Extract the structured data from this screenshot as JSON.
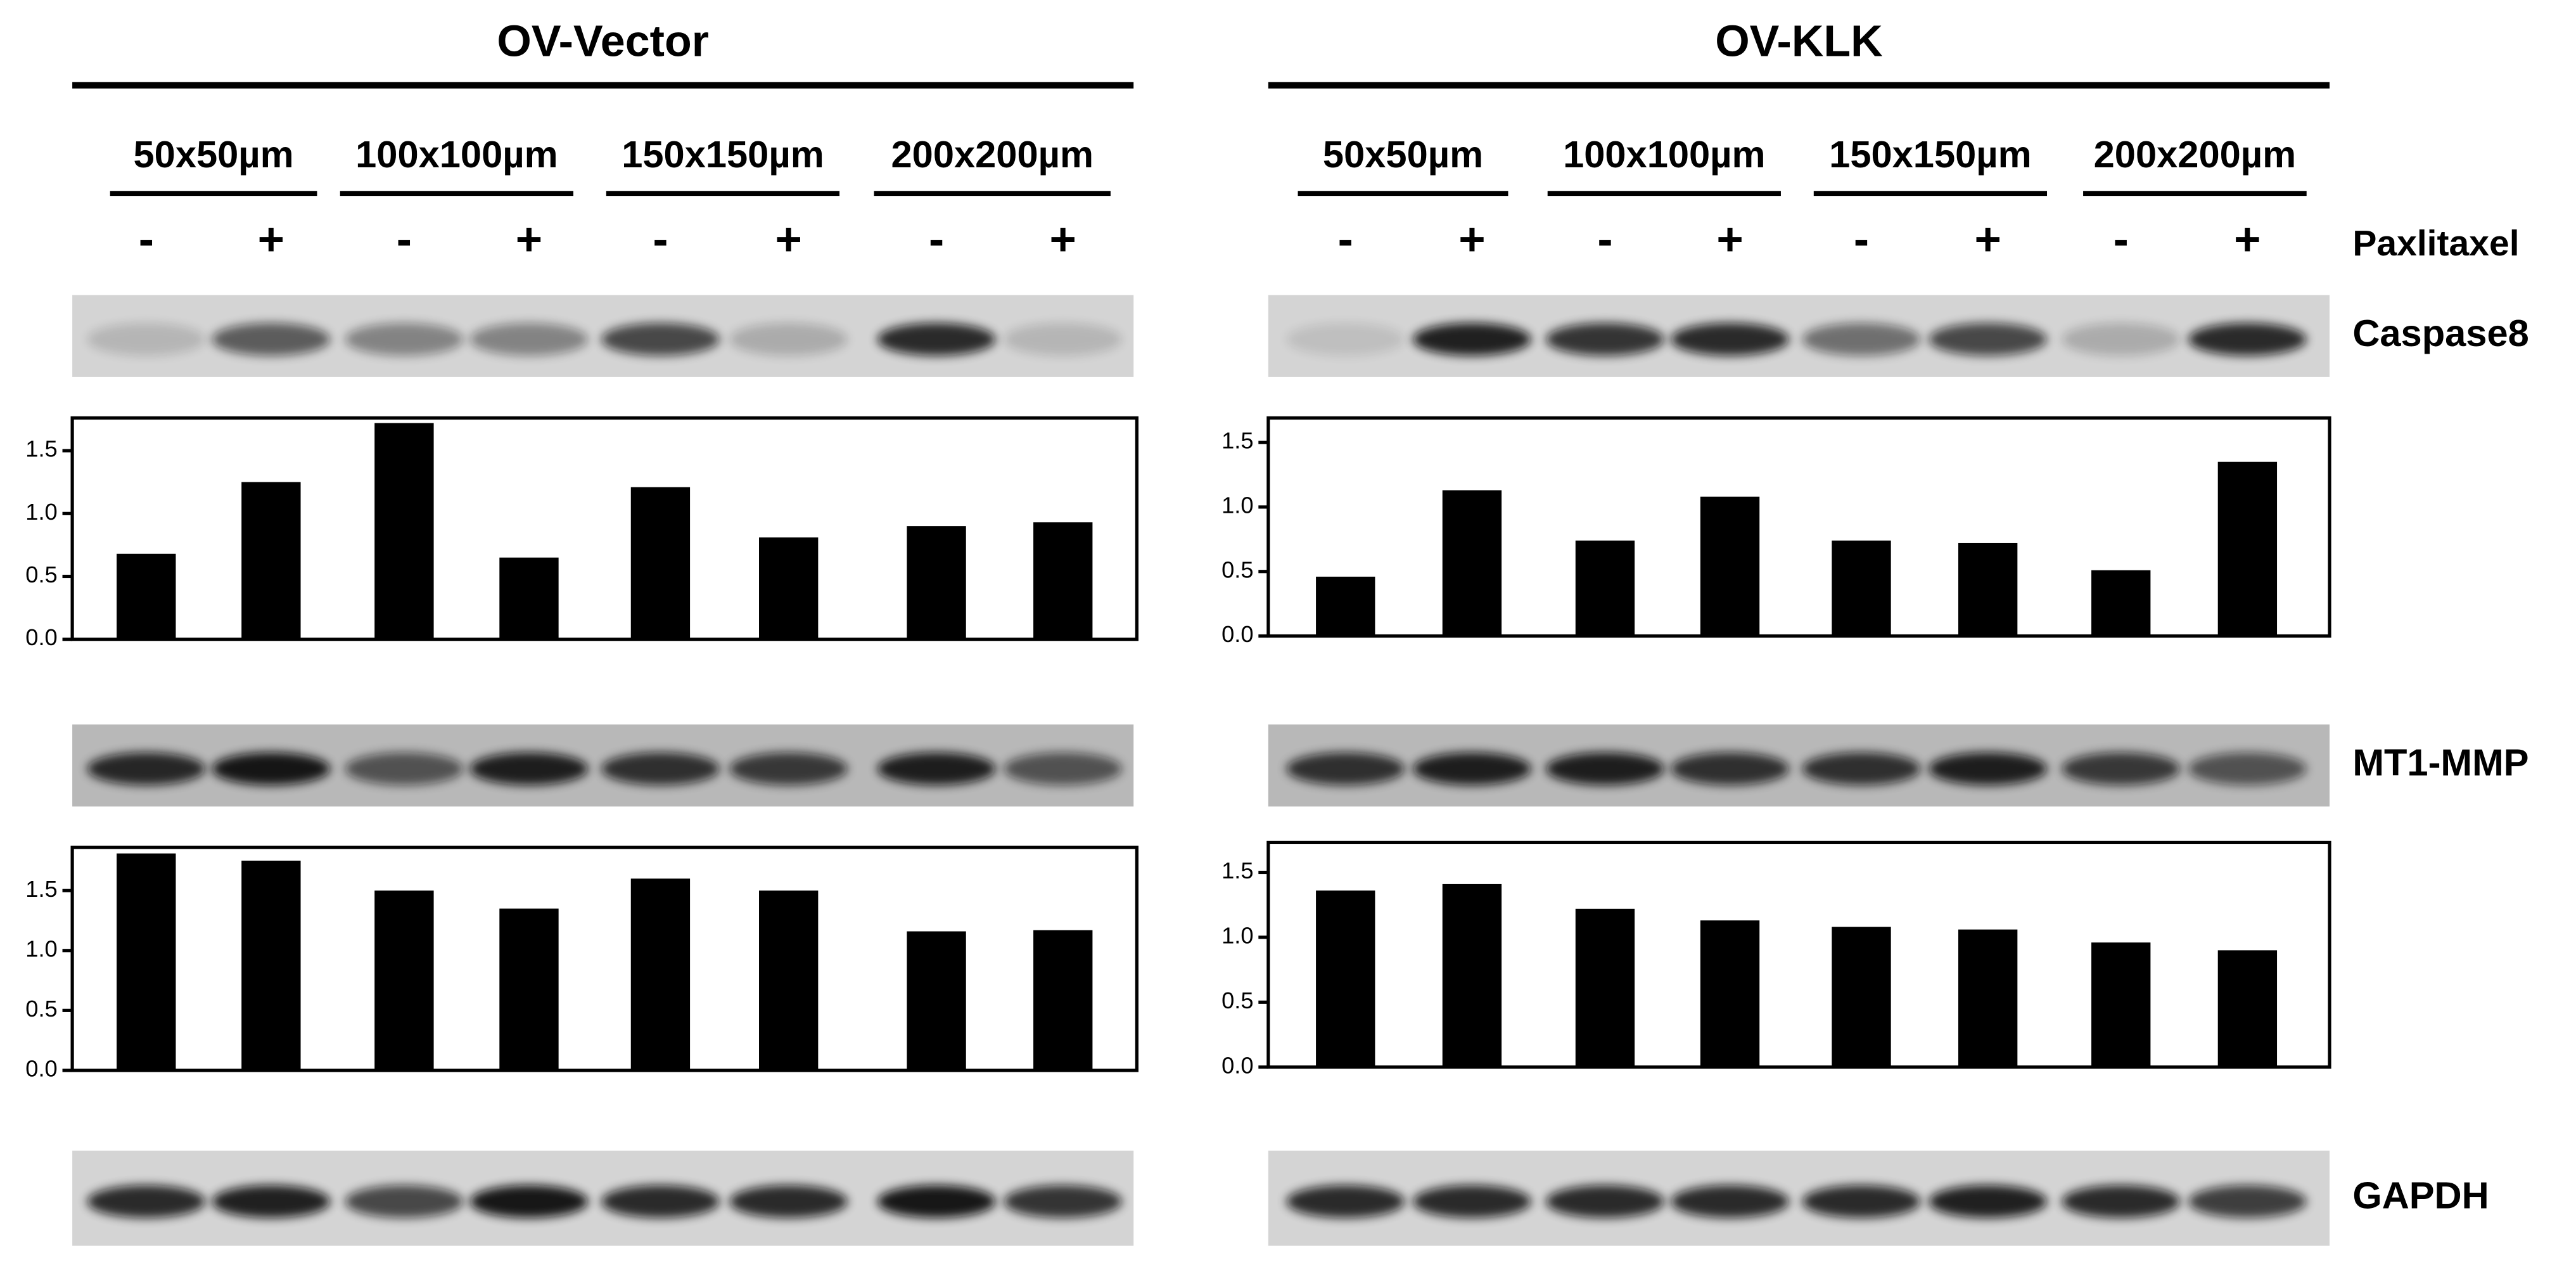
{
  "panels": [
    {
      "title": "OV-Vector",
      "sizes": [
        "50x50µm",
        "100x100µm",
        "150x150µm",
        "200x200µm"
      ],
      "treatments": [
        "-",
        "+",
        "-",
        "+",
        "-",
        "+",
        "-",
        "+"
      ]
    },
    {
      "title": "OV-KLK",
      "sizes": [
        "50x50µm",
        "100x100µm",
        "150x150µm",
        "200x200µm"
      ],
      "treatments": [
        "-",
        "+",
        "-",
        "+",
        "-",
        "+",
        "-",
        "+"
      ]
    }
  ],
  "treatment_label": "Paxlitaxel",
  "blot_labels": [
    "Caspase8",
    "MT1-MMP",
    "GAPDH"
  ],
  "chart_data": [
    {
      "type": "bar",
      "color": "#000000",
      "values": [
        0.68,
        1.25,
        1.72,
        0.65,
        1.21,
        0.81,
        0.9,
        0.93
      ],
      "ylim": [
        0,
        1.76
      ],
      "yticks": [
        {
          "value": 0,
          "label": "0.0"
        },
        0.5,
        {
          "value": 1,
          "label": "1.0"
        },
        1.5
      ]
    },
    {
      "type": "bar",
      "color": "#000000",
      "values": [
        0.46,
        1.13,
        0.74,
        1.08,
        0.74,
        0.72,
        0.51,
        1.35
      ],
      "ylim": [
        0,
        1.69
      ],
      "yticks": [
        {
          "value": 0,
          "label": "0.0"
        },
        0.5,
        {
          "value": 1,
          "label": "1.0"
        },
        1.5
      ]
    },
    {
      "type": "bar",
      "color": "#000000",
      "values": [
        1.81,
        1.75,
        1.5,
        1.35,
        1.6,
        1.5,
        1.16,
        1.17
      ],
      "ylim": [
        0,
        1.86
      ],
      "yticks": [
        {
          "value": 0,
          "label": "0.0"
        },
        0.5,
        {
          "value": 1,
          "label": "1.0"
        },
        1.5
      ]
    },
    {
      "type": "bar",
      "color": "#000000",
      "values": [
        1.36,
        1.41,
        1.22,
        1.13,
        1.08,
        1.06,
        0.96,
        0.9
      ],
      "ylim": [
        0,
        1.73
      ],
      "yticks": [
        {
          "value": 0,
          "label": "0.0"
        },
        0.5,
        {
          "value": 1,
          "label": "1.0"
        },
        1.5
      ]
    }
  ]
}
